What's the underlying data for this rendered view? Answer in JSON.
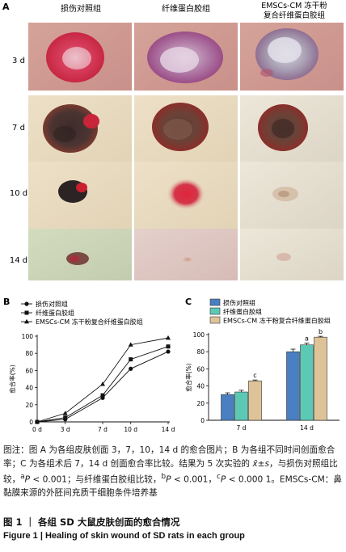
{
  "panel_a": {
    "label": "A",
    "columns": [
      "损伤对照组",
      "纤维蛋白胶组",
      "EMSCs-CM 冻干粉",
      "复合纤维蛋白胶组"
    ],
    "rows": [
      "3 d",
      "7 d",
      "10 d",
      "14 d"
    ]
  },
  "panel_b": {
    "label": "B"
  },
  "panel_c": {
    "label": "C"
  },
  "caption": {
    "segments": [
      "图注：图 A 为各组皮肤创面 3，7，10，14 d 的愈合图片；B 为各组不同时间创面愈合率；C 为各组术后 7，14 d 创面愈合率比较。结果为 5 次实验的 ",
      "x̄±s",
      "，与损伤对照组比较，",
      "a",
      "P",
      " < 0.001；与纤维蛋白胶组比较，",
      "b",
      "P",
      " < 0.001，",
      "c",
      "P",
      " < 0.000 1。EMSCs-CM：鼻黏膜来源的外胚间充质干细胞条件培养基"
    ]
  },
  "figure_title_cn": "图 1 ｜ 各组 SD 大鼠皮肤创面的愈合情况",
  "figure_title_en": "Figure 1  |  Healing of skin wound of SD rats in each group",
  "chart_data": [
    {
      "type": "line",
      "panel": "B",
      "ylabel": "愈合率(%)",
      "ylim": [
        0,
        100
      ],
      "y_ticks": [
        "0",
        "20",
        "40",
        "60",
        "80",
        "100"
      ],
      "x": [
        "0 d",
        "3 d",
        "7 d",
        "10 d",
        "14 d"
      ],
      "x_positions": [
        0,
        3,
        7,
        10,
        14
      ],
      "series": [
        {
          "name": "损伤对照组",
          "marker": "circle",
          "values": [
            0,
            3,
            28,
            62,
            82
          ]
        },
        {
          "name": "纤维蛋白胶组",
          "marker": "square",
          "values": [
            0,
            5,
            31,
            73,
            88
          ]
        },
        {
          "name": "EMSCs-CM 冻干粉复合纤维蛋白胶组",
          "marker": "triangle",
          "values": [
            0,
            10,
            44,
            90,
            98
          ]
        }
      ],
      "legend_position": "top-left",
      "grid": false
    },
    {
      "type": "bar",
      "panel": "C",
      "ylabel": "愈合率(%)",
      "ylim": [
        0,
        100
      ],
      "y_ticks": [
        "0",
        "20",
        "40",
        "60",
        "80",
        "100"
      ],
      "categories": [
        "7 d",
        "14 d"
      ],
      "series": [
        {
          "name": "损伤对照组",
          "color": "#4a7fc1",
          "values": [
            30,
            80
          ],
          "errors": [
            2,
            3
          ],
          "sig": [
            "",
            ""
          ]
        },
        {
          "name": "纤维蛋白胶组",
          "color": "#5cc9b5",
          "values": [
            33,
            88
          ],
          "errors": [
            2,
            2
          ],
          "sig": [
            "",
            "a"
          ]
        },
        {
          "name": "EMSCs-CM 冻干粉复合纤维蛋白胶组",
          "color": "#dfc398",
          "values": [
            46,
            97
          ],
          "errors": [
            1,
            1
          ],
          "sig": [
            "c",
            "b"
          ]
        }
      ],
      "legend_position": "top-left",
      "grid": false
    }
  ]
}
